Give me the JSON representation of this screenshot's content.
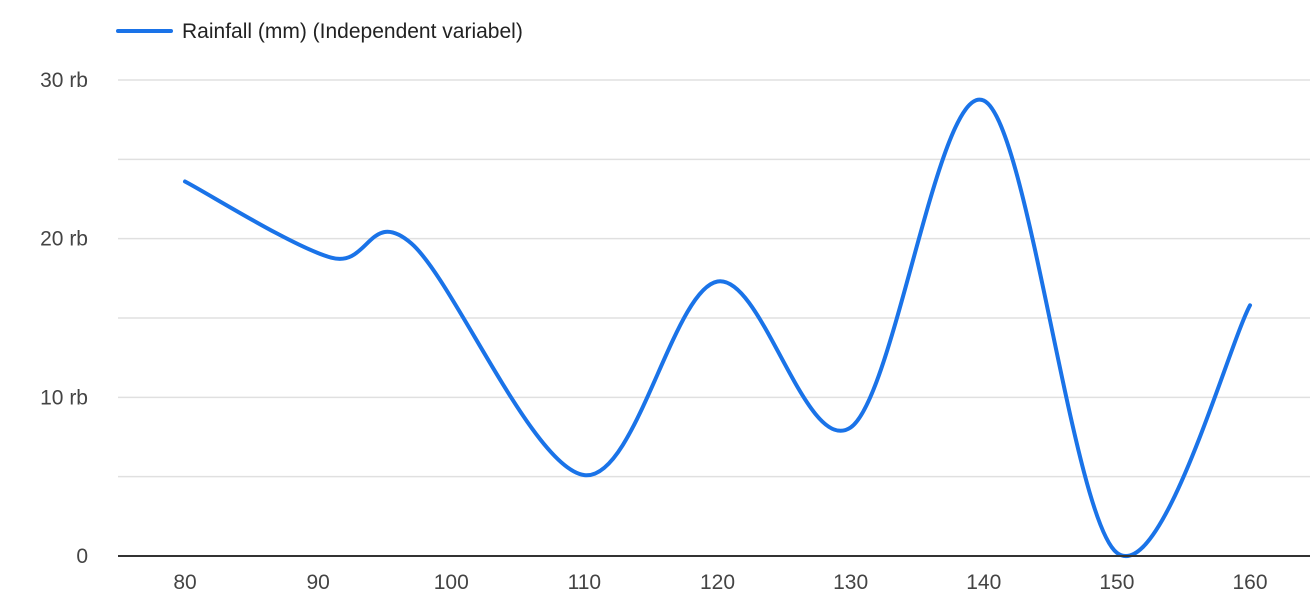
{
  "colors": {
    "series": "#1a73e8",
    "gridline": "#e0e0e0",
    "axis": "#333333",
    "text": "#444444"
  },
  "chart_data": {
    "type": "line",
    "smooth": true,
    "legend_position": "top-left",
    "grid": true,
    "x": [
      80,
      90,
      100,
      110,
      120,
      130,
      140,
      150,
      160
    ],
    "xlim": [
      80,
      160
    ],
    "ylim": [
      0,
      30000
    ],
    "xlabel": "",
    "ylabel": "",
    "x_ticks": [
      {
        "value": 80,
        "label": "80"
      },
      {
        "value": 90,
        "label": "90"
      },
      {
        "value": 100,
        "label": "100"
      },
      {
        "value": 110,
        "label": "110"
      },
      {
        "value": 120,
        "label": "120"
      },
      {
        "value": 130,
        "label": "130"
      },
      {
        "value": 140,
        "label": "140"
      },
      {
        "value": 150,
        "label": "150"
      },
      {
        "value": 160,
        "label": "160"
      }
    ],
    "y_ticks": [
      {
        "value": 0,
        "label": "0"
      },
      {
        "value": 10000,
        "label": "10 rb"
      },
      {
        "value": 20000,
        "label": "20 rb"
      },
      {
        "value": 30000,
        "label": "30 rb"
      }
    ],
    "y_minor_gridlines": [
      5000,
      15000,
      25000
    ],
    "series": [
      {
        "name": "Rainfall (mm) (Independent variabel)",
        "points": [
          {
            "x": 80,
            "y": 23600
          },
          {
            "x": 91,
            "y": 18800
          },
          {
            "x": 97,
            "y": 19700
          },
          {
            "x": 110,
            "y": 5100
          },
          {
            "x": 120,
            "y": 17300
          },
          {
            "x": 130,
            "y": 8100
          },
          {
            "x": 140,
            "y": 28700
          },
          {
            "x": 150,
            "y": 200
          },
          {
            "x": 160,
            "y": 15800
          }
        ]
      }
    ]
  }
}
